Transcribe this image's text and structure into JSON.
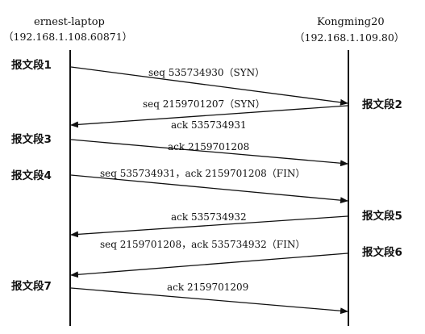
{
  "left_host": {
    "name": "ernest-laptop",
    "address": "（192.168.1.108.60871）"
  },
  "right_host": {
    "name": "Kongming20",
    "address": "（192.168.1.109.80）"
  },
  "segments": [
    {
      "label": "报文段1"
    },
    {
      "label": "报文段2"
    },
    {
      "label": "报文段3"
    },
    {
      "label": "报文段4"
    },
    {
      "label": "报文段5"
    },
    {
      "label": "报文段6"
    },
    {
      "label": "报文段7"
    }
  ],
  "messages": [
    {
      "text": "seq 535734930（SYN）"
    },
    {
      "text": "seq 2159701207（SYN）",
      "text2": "ack 535734931"
    },
    {
      "text": "ack 2159701208"
    },
    {
      "text": "seq 535734931，ack 2159701208（FIN）"
    },
    {
      "text": "ack 535734932"
    },
    {
      "text": "seq 2159701208，ack 535734932（FIN）"
    },
    {
      "text": "ack 2159701209"
    }
  ]
}
